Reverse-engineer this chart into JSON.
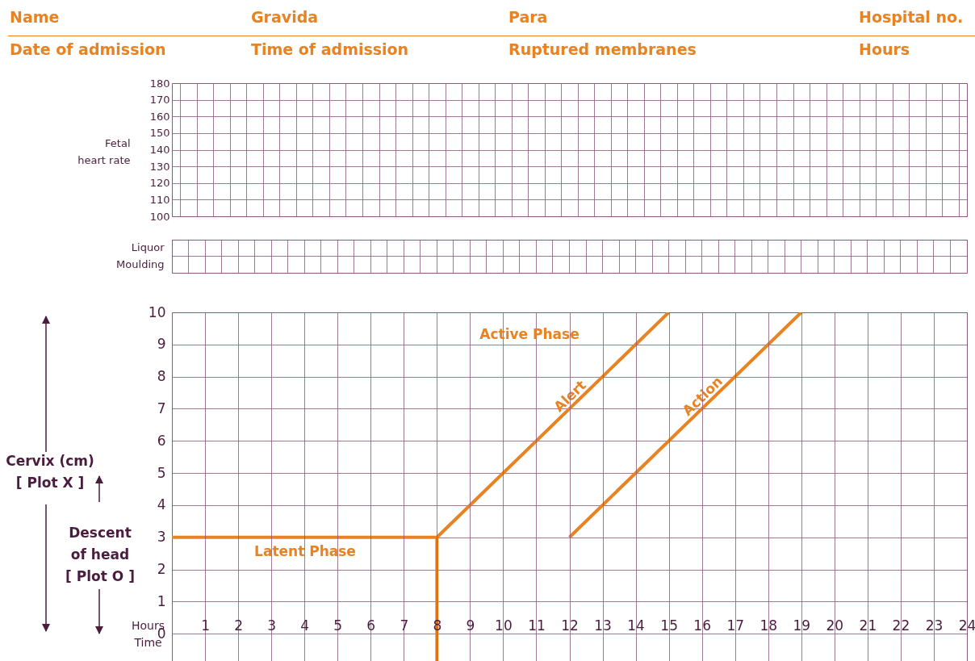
{
  "chart_data": [
    {
      "type": "line",
      "annotations": [
        "Name",
        "Gravida",
        "Para",
        "Hospital no.",
        "Date of admission",
        "Time of admission",
        "Ruptured membranes",
        "Hours"
      ],
      "ylabel": "Fetal\nheart rate",
      "categories": [
        null,
        null,
        null,
        null,
        null,
        null,
        null,
        null,
        null,
        null,
        null,
        null,
        null,
        null,
        null,
        null,
        null,
        null,
        null,
        null,
        null,
        null,
        null,
        null,
        null,
        null,
        null,
        null,
        null,
        null,
        null,
        null,
        null,
        null,
        null,
        null,
        null,
        null,
        null,
        null,
        null,
        null,
        null,
        null,
        null,
        null,
        null,
        null
      ],
      "ylim": [
        100,
        180
      ],
      "yticks": [
        100,
        110,
        120,
        130,
        140,
        150,
        160,
        170,
        180
      ],
      "grid": true,
      "tick_labels": "y",
      "series": [
        {
          "color": "#e98220",
          "values": [
            null,
            null,
            null,
            null,
            null,
            null,
            null,
            null,
            null,
            null,
            null,
            null,
            null,
            null,
            null,
            null,
            null,
            null,
            null,
            null,
            null,
            null,
            null,
            null,
            null,
            null,
            null,
            null,
            null,
            null,
            null,
            null,
            null,
            null,
            null,
            null,
            null,
            null,
            null,
            null,
            null,
            null,
            null,
            null,
            null,
            null,
            null,
            null
          ]
        }
      ]
    },
    {
      "type": "heatmap",
      "categories": [
        null,
        null,
        null,
        null,
        null,
        null,
        null,
        null,
        null,
        null,
        null,
        null,
        null,
        null,
        null,
        null,
        null,
        null,
        null,
        null,
        null,
        null,
        null,
        null,
        null,
        null,
        null,
        null,
        null,
        null,
        null,
        null,
        null,
        null,
        null,
        null,
        null,
        null,
        null,
        null,
        null,
        null,
        null,
        null,
        null,
        null,
        null,
        null
      ],
      "y_categories": [
        "Liquor",
        "Moulding"
      ],
      "cells": [
        [
          null,
          null,
          null,
          null,
          null,
          null,
          null,
          null,
          null,
          null,
          null,
          null,
          null,
          null,
          null,
          null,
          null,
          null,
          null,
          null,
          null,
          null,
          null,
          null,
          null,
          null,
          null,
          null,
          null,
          null,
          null,
          null,
          null,
          null,
          null,
          null,
          null,
          null,
          null,
          null,
          null,
          null,
          null,
          null,
          null,
          null,
          null,
          null
        ],
        [
          null,
          null,
          null,
          null,
          null,
          null,
          null,
          null,
          null,
          null,
          null,
          null,
          null,
          null,
          null,
          null,
          null,
          null,
          null,
          null,
          null,
          null,
          null,
          null,
          null,
          null,
          null,
          null,
          null,
          null,
          null,
          null,
          null,
          null,
          null,
          null,
          null,
          null,
          null,
          null,
          null,
          null,
          null,
          null,
          null,
          null,
          null,
          null
        ]
      ],
      "grid": true,
      "tick_labels": "y"
    },
    {
      "type": "line",
      "xlabel": "Hours\nTime",
      "ylabel": "Cervix (cm)\n[ Plot X ]",
      "xlim": [
        0,
        24
      ],
      "xticks": [
        1,
        2,
        3,
        4,
        5,
        6,
        7,
        8,
        9,
        10,
        11,
        12,
        13,
        14,
        15,
        16,
        17,
        18,
        19,
        20,
        21,
        22,
        23,
        24
      ],
      "ylim": [
        -0.85,
        10
      ],
      "yticks": [
        0,
        1,
        2,
        3,
        4,
        5,
        6,
        7,
        8,
        9,
        10
      ],
      "grid": true,
      "annotations": [
        "Active Phase",
        "Latent Phase",
        "Descent\nof head\n[ Plot O ]"
      ],
      "series": [
        {
          "name": "Alert",
          "color": "#e98220",
          "x": [
            0,
            8,
            15
          ],
          "values": [
            3,
            3,
            10
          ]
        },
        {
          "color": "#e98220",
          "x": [
            8,
            8
          ],
          "values": [
            3,
            -0.85
          ]
        },
        {
          "name": "Action",
          "color": "#e98220",
          "x": [
            12,
            19
          ],
          "values": [
            3,
            10
          ]
        }
      ]
    }
  ]
}
